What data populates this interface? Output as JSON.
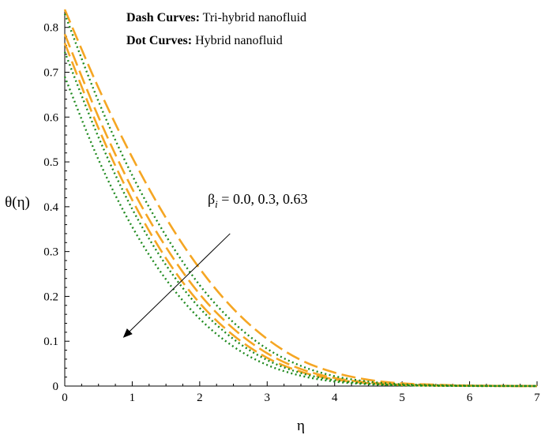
{
  "chart_data": {
    "type": "line",
    "xlabel": "η",
    "ylabel": "θ(η)",
    "xlim": [
      0,
      7
    ],
    "ylim": [
      0,
      0.84
    ],
    "xticks": [
      0,
      1,
      2,
      3,
      4,
      5,
      6,
      7
    ],
    "xtick_labels": [
      "0",
      "1",
      "2",
      "3",
      "4",
      "5",
      "6",
      "7"
    ],
    "yticks": [
      0,
      0.1,
      0.2,
      0.3,
      0.4,
      0.5,
      0.6,
      0.7,
      0.8
    ],
    "ytick_labels": [
      "0",
      "0.1",
      "0.2",
      "0.3",
      "0.4",
      "0.5",
      "0.6",
      "0.7",
      "0.8"
    ],
    "grid": false,
    "legend": {
      "placement": "top-center",
      "dash": {
        "label": "Dash Curves:",
        "text": " Tri-hybrid nanofluid"
      },
      "dot": {
        "label": "Dot Curves:",
        "text": " Hybrid nanofluid"
      }
    },
    "annotation": {
      "symbol": "β",
      "subscript": "i",
      "text": " = 0.0, 0.3, 0.63",
      "arrow": {
        "from": [
          2.45,
          0.34
        ],
        "to": [
          0.88,
          0.11
        ]
      }
    },
    "colors": {
      "dash": "#f5a623",
      "dot": "#1f8a1f"
    },
    "x": [
      0,
      0.5,
      1,
      1.5,
      2,
      2.5,
      3,
      3.5,
      4,
      4.5,
      5,
      5.5,
      6,
      6.5,
      7
    ],
    "series": [
      {
        "style": "dash",
        "values": [
          0.84,
          0.665,
          0.51,
          0.375,
          0.262,
          0.172,
          0.105,
          0.058,
          0.03,
          0.014,
          0.006,
          0.003,
          0.001,
          0.0005,
          0.0
        ]
      },
      {
        "style": "dash",
        "values": [
          0.785,
          0.6,
          0.44,
          0.31,
          0.205,
          0.128,
          0.073,
          0.038,
          0.018,
          0.008,
          0.003,
          0.0015,
          0.0007,
          0.0003,
          0.0
        ]
      },
      {
        "style": "dash",
        "values": [
          0.765,
          0.575,
          0.415,
          0.285,
          0.185,
          0.113,
          0.063,
          0.032,
          0.015,
          0.0065,
          0.0025,
          0.001,
          0.0005,
          0.0002,
          0.0
        ]
      },
      {
        "style": "dot",
        "values": [
          0.83,
          0.635,
          0.47,
          0.335,
          0.225,
          0.142,
          0.083,
          0.045,
          0.022,
          0.01,
          0.004,
          0.002,
          0.0008,
          0.0003,
          0.0
        ]
      },
      {
        "style": "dot",
        "values": [
          0.745,
          0.555,
          0.395,
          0.27,
          0.174,
          0.105,
          0.058,
          0.029,
          0.013,
          0.0055,
          0.002,
          0.0008,
          0.0003,
          0.0001,
          0.0
        ]
      },
      {
        "style": "dot",
        "values": [
          0.69,
          0.505,
          0.355,
          0.238,
          0.15,
          0.088,
          0.047,
          0.023,
          0.01,
          0.004,
          0.0015,
          0.0006,
          0.0002,
          0.0001,
          0.0
        ]
      }
    ]
  }
}
